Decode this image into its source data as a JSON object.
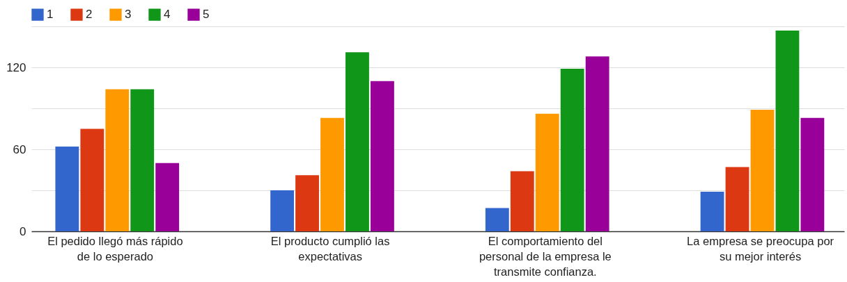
{
  "chart_data": {
    "type": "bar",
    "categories": [
      "El pedido llegó más rápido de lo esperado",
      "El producto cumplió las expectativas",
      "El comportamiento del personal de la empresa le transmite confianza.",
      "La empresa se preocupa por su mejor interés"
    ],
    "series": [
      {
        "name": "1",
        "color": "#3366cc",
        "values": [
          62,
          30,
          17,
          29
        ]
      },
      {
        "name": "2",
        "color": "#dc3912",
        "values": [
          75,
          41,
          44,
          47
        ]
      },
      {
        "name": "3",
        "color": "#ff9900",
        "values": [
          104,
          83,
          86,
          89
        ]
      },
      {
        "name": "4",
        "color": "#109618",
        "values": [
          104,
          131,
          119,
          147
        ]
      },
      {
        "name": "5",
        "color": "#990099",
        "values": [
          50,
          110,
          128,
          83
        ]
      }
    ],
    "ylim": [
      0,
      150
    ],
    "yticks": [
      0,
      {
        "value": 30,
        "label": null
      },
      60,
      {
        "value": 90,
        "label": null
      },
      120,
      {
        "value": 150,
        "label": null
      }
    ],
    "grid": true,
    "legend": "top left"
  }
}
